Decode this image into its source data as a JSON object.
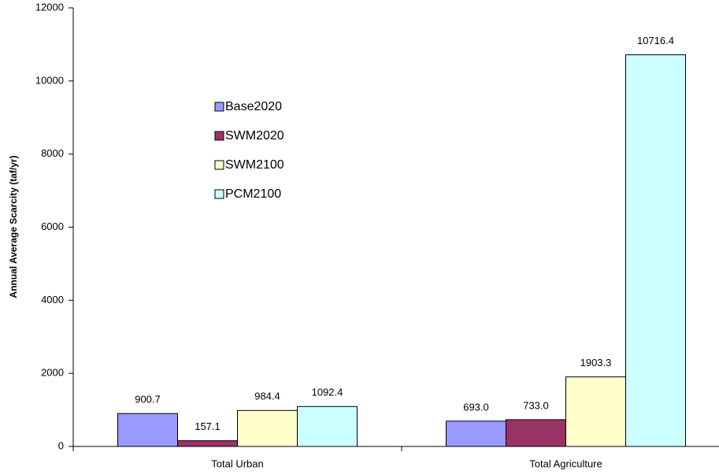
{
  "chart_data": {
    "type": "bar",
    "y_label": "Annual Average Scarcity (taf/yr)",
    "categories": [
      "Total Urban",
      "Total Agriculture"
    ],
    "series": [
      {
        "name": "Base2020",
        "color": "#9999ff",
        "values": [
          900.7,
          693.0
        ],
        "value_labels": [
          "900.7",
          "693.0"
        ]
      },
      {
        "name": "SWM2020",
        "color": "#993366",
        "values": [
          157.1,
          733.0
        ],
        "value_labels": [
          "157.1",
          "733.0"
        ]
      },
      {
        "name": "SWM2100",
        "color": "#ffffcc",
        "values": [
          984.4,
          1903.3
        ],
        "value_labels": [
          "984.4",
          "1903.3"
        ]
      },
      {
        "name": "PCM2100",
        "color": "#ccffff",
        "values": [
          1092.4,
          10716.4
        ],
        "value_labels": [
          "1092.4",
          "10716.4"
        ]
      }
    ],
    "ylim": [
      0,
      12000
    ],
    "yticks": [
      0,
      2000,
      4000,
      6000,
      8000,
      10000,
      12000
    ]
  }
}
